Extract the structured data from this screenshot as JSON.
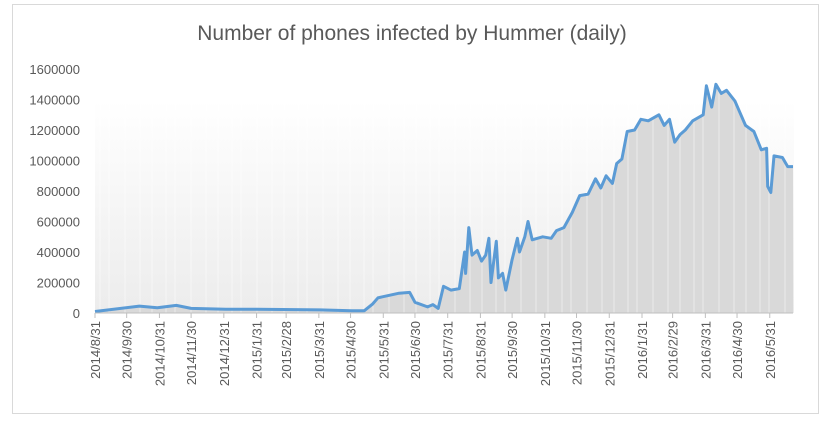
{
  "chart_data": {
    "type": "area",
    "title": "Number of phones infected by Hummer (daily)",
    "xlabel": "",
    "ylabel": "",
    "ylim": [
      0,
      1600000
    ],
    "yticks": [
      "0",
      "200000",
      "400000",
      "600000",
      "800000",
      "1000000",
      "1200000",
      "1400000",
      "1600000"
    ],
    "xticks": [
      "2014/8/31",
      "2014/9/30",
      "2014/10/31",
      "2014/11/30",
      "2014/12/31",
      "2015/1/31",
      "2015/2/28",
      "2015/3/31",
      "2015/4/30",
      "2015/5/31",
      "2015/6/30",
      "2015/7/31",
      "2015/8/31",
      "2015/9/30",
      "2015/10/31",
      "2015/11/30",
      "2015/12/31",
      "2016/1/31",
      "2016/2/29",
      "2016/3/31",
      "2016/4/30",
      "2016/5/31"
    ],
    "xlim": [
      "2014-08-31",
      "2016-06-22"
    ],
    "grid": false,
    "line_color": "#5b9bd5",
    "fill_color": "#d9d9d9",
    "series": [
      {
        "points": [
          [
            "2014-08-31",
            10000
          ],
          [
            "2014-10-12",
            45000
          ],
          [
            "2014-10-29",
            35000
          ],
          [
            "2014-11-16",
            50000
          ],
          [
            "2014-11-30",
            30000
          ],
          [
            "2015-01-02",
            25000
          ],
          [
            "2015-01-31",
            25000
          ],
          [
            "2015-04-01",
            20000
          ],
          [
            "2015-05-01",
            15000
          ],
          [
            "2015-05-13",
            15000
          ],
          [
            "2015-05-21",
            60000
          ],
          [
            "2015-05-26",
            100000
          ],
          [
            "2015-06-15",
            130000
          ],
          [
            "2015-06-25",
            135000
          ],
          [
            "2015-06-30",
            70000
          ],
          [
            "2015-07-12",
            40000
          ],
          [
            "2015-07-17",
            55000
          ],
          [
            "2015-07-22",
            30000
          ],
          [
            "2015-07-27",
            175000
          ],
          [
            "2015-08-03",
            150000
          ],
          [
            "2015-08-11",
            160000
          ],
          [
            "2015-08-16",
            400000
          ],
          [
            "2015-08-17",
            260000
          ],
          [
            "2015-08-20",
            560000
          ],
          [
            "2015-08-23",
            380000
          ],
          [
            "2015-08-28",
            410000
          ],
          [
            "2015-09-01",
            340000
          ],
          [
            "2015-09-05",
            380000
          ],
          [
            "2015-09-08",
            490000
          ],
          [
            "2015-09-10",
            200000
          ],
          [
            "2015-09-15",
            470000
          ],
          [
            "2015-09-17",
            230000
          ],
          [
            "2015-09-21",
            260000
          ],
          [
            "2015-09-24",
            150000
          ],
          [
            "2015-09-30",
            350000
          ],
          [
            "2015-10-05",
            490000
          ],
          [
            "2015-10-07",
            400000
          ],
          [
            "2015-10-12",
            500000
          ],
          [
            "2015-10-15",
            600000
          ],
          [
            "2015-10-19",
            480000
          ],
          [
            "2015-10-29",
            500000
          ],
          [
            "2015-11-06",
            490000
          ],
          [
            "2015-11-11",
            540000
          ],
          [
            "2015-11-18",
            560000
          ],
          [
            "2015-11-26",
            660000
          ],
          [
            "2015-12-03",
            770000
          ],
          [
            "2015-12-11",
            780000
          ],
          [
            "2015-12-18",
            880000
          ],
          [
            "2015-12-23",
            820000
          ],
          [
            "2015-12-28",
            900000
          ],
          [
            "2016-01-03",
            850000
          ],
          [
            "2016-01-07",
            980000
          ],
          [
            "2016-01-12",
            1010000
          ],
          [
            "2016-01-17",
            1190000
          ],
          [
            "2016-01-24",
            1200000
          ],
          [
            "2016-01-30",
            1270000
          ],
          [
            "2016-02-06",
            1260000
          ],
          [
            "2016-02-16",
            1300000
          ],
          [
            "2016-02-21",
            1230000
          ],
          [
            "2016-02-26",
            1270000
          ],
          [
            "2016-03-02",
            1120000
          ],
          [
            "2016-03-07",
            1170000
          ],
          [
            "2016-03-12",
            1200000
          ],
          [
            "2016-03-19",
            1260000
          ],
          [
            "2016-03-29",
            1300000
          ],
          [
            "2016-04-01",
            1490000
          ],
          [
            "2016-04-06",
            1350000
          ],
          [
            "2016-04-10",
            1500000
          ],
          [
            "2016-04-15",
            1440000
          ],
          [
            "2016-04-20",
            1460000
          ],
          [
            "2016-04-28",
            1390000
          ],
          [
            "2016-05-03",
            1310000
          ],
          [
            "2016-05-08",
            1230000
          ],
          [
            "2016-05-16",
            1190000
          ],
          [
            "2016-05-23",
            1070000
          ],
          [
            "2016-05-28",
            1080000
          ],
          [
            "2016-05-29",
            830000
          ],
          [
            "2016-06-01",
            790000
          ],
          [
            "2016-06-04",
            1030000
          ],
          [
            "2016-06-12",
            1020000
          ],
          [
            "2016-06-17",
            960000
          ],
          [
            "2016-06-22",
            960000
          ]
        ]
      }
    ]
  }
}
